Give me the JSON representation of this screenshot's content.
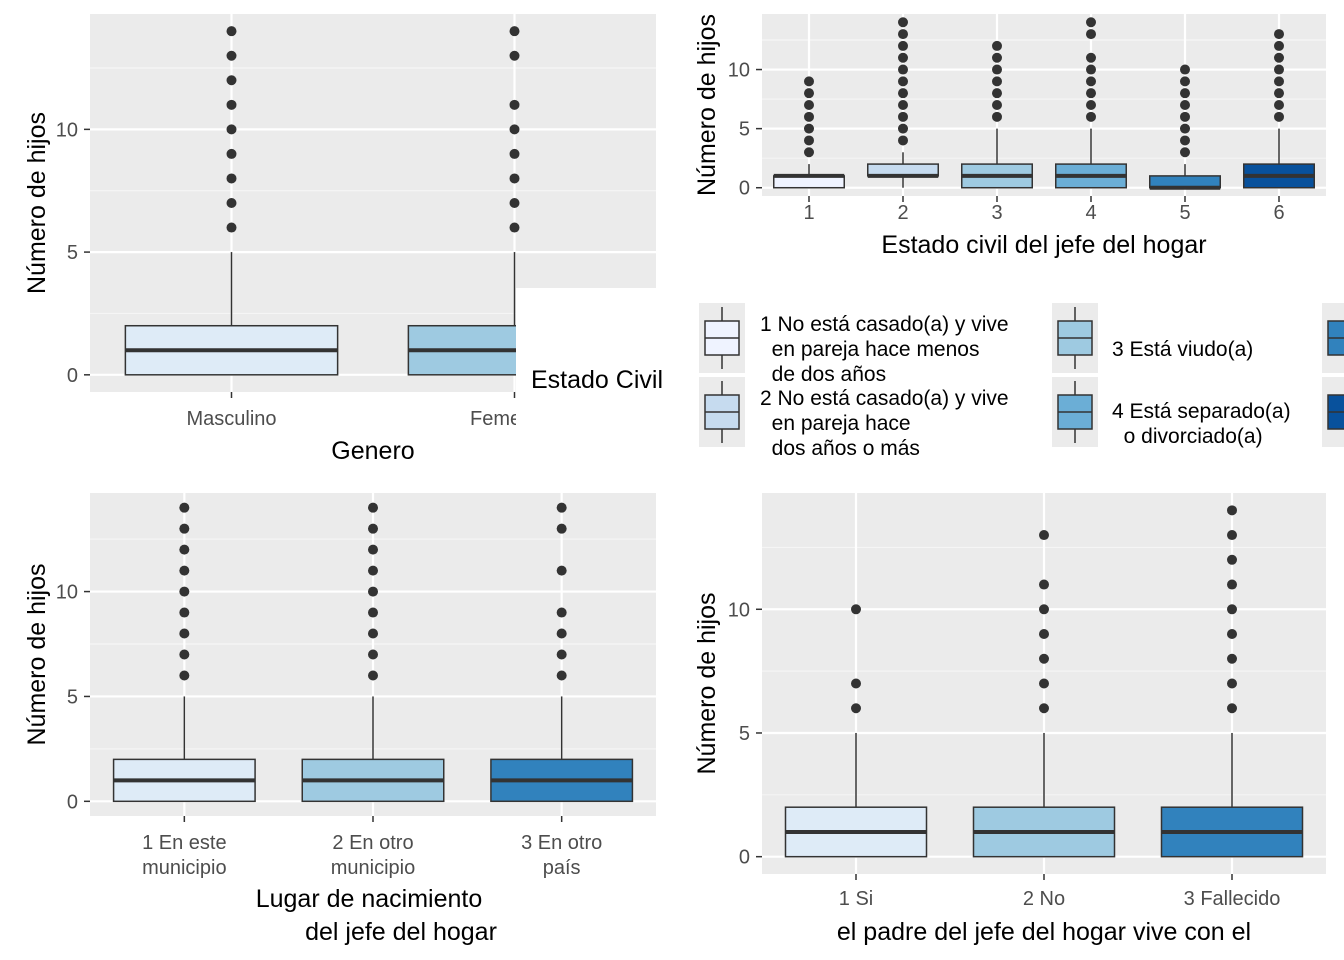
{
  "colors": {
    "panel_bg": "#ebebeb",
    "grid_major": "#ffffff",
    "outline": "#333333",
    "outlier": "#333333",
    "palette": [
      "#eff3ff",
      "#c6dbef",
      "#9ecae1",
      "#6baed6",
      "#3182bd",
      "#08519c"
    ]
  },
  "chart_data": [
    {
      "type": "boxplot",
      "xlabel": "Genero",
      "ylabel": "Número de hijos",
      "y_ticks": [
        0,
        5,
        10
      ],
      "ylim": [
        -0.7,
        14.7
      ],
      "grid": true,
      "categories": [
        "Masculino",
        "Femenino"
      ],
      "fills": [
        "#deebf7",
        "#9ecae1"
      ],
      "boxes": [
        {
          "category": "Masculino",
          "min": 0,
          "q1": 0,
          "median": 1,
          "q3": 2,
          "max": 5,
          "outliers": [
            6,
            7,
            8,
            9,
            10,
            11,
            12,
            13,
            14
          ]
        },
        {
          "category": "Femenino",
          "min": 0,
          "q1": 0,
          "median": 1,
          "q3": 2,
          "max": 5,
          "outliers": [
            6,
            7,
            8,
            9,
            10,
            11,
            13,
            14
          ]
        }
      ]
    },
    {
      "type": "boxplot",
      "xlabel": "Estado civil del jefe del hogar",
      "ylabel": "Número de hijos",
      "y_ticks": [
        0,
        5,
        10
      ],
      "ylim": [
        -0.7,
        14.7
      ],
      "grid": true,
      "categories": [
        "1",
        "2",
        "3",
        "4",
        "5",
        "6"
      ],
      "fills": [
        "#eff3ff",
        "#c6dbef",
        "#9ecae1",
        "#6baed6",
        "#3182bd",
        "#08519c"
      ],
      "boxes": [
        {
          "category": "1",
          "min": 0,
          "q1": 0,
          "median": 1,
          "q3": 1,
          "max": 2,
          "outliers": [
            3,
            4,
            5,
            6,
            7,
            8,
            9
          ]
        },
        {
          "category": "2",
          "min": 0,
          "q1": 1,
          "median": 1,
          "q3": 2,
          "max": 3,
          "outliers": [
            4,
            5,
            6,
            7,
            8,
            9,
            10,
            11,
            12,
            13,
            14
          ]
        },
        {
          "category": "3",
          "min": 0,
          "q1": 0,
          "median": 1,
          "q3": 2,
          "max": 5,
          "outliers": [
            6,
            7,
            8,
            9,
            10,
            11,
            12
          ]
        },
        {
          "category": "4",
          "min": 0,
          "q1": 0,
          "median": 1,
          "q3": 2,
          "max": 5,
          "outliers": [
            6,
            7,
            8,
            9,
            10,
            11,
            13,
            14
          ]
        },
        {
          "category": "5",
          "min": 0,
          "q1": 0,
          "median": 0,
          "q3": 1,
          "max": 2,
          "outliers": [
            3,
            4,
            5,
            6,
            7,
            8,
            9,
            10
          ]
        },
        {
          "category": "6",
          "min": 0,
          "q1": 0,
          "median": 1,
          "q3": 2,
          "max": 5,
          "outliers": [
            6,
            7,
            8,
            9,
            10,
            11,
            12,
            13
          ]
        }
      ]
    },
    {
      "type": "boxplot",
      "xlabel_lines": [
        "Lugar de nacimiento",
        "del jefe del hogar"
      ],
      "ylabel": "Número de hijos",
      "y_ticks": [
        0,
        5,
        10
      ],
      "ylim": [
        -0.7,
        14.7
      ],
      "grid": true,
      "categories": [
        [
          "1 En este",
          "municipio"
        ],
        [
          "2 En otro",
          "municipio"
        ],
        [
          "3 En otro",
          "país"
        ]
      ],
      "fills": [
        "#deebf7",
        "#9ecae1",
        "#3182bd"
      ],
      "boxes": [
        {
          "category": "1 En este municipio",
          "min": 0,
          "q1": 0,
          "median": 1,
          "q3": 2,
          "max": 5,
          "outliers": [
            6,
            7,
            8,
            9,
            10,
            11,
            12,
            13,
            14
          ]
        },
        {
          "category": "2 En otro municipio",
          "min": 0,
          "q1": 0,
          "median": 1,
          "q3": 2,
          "max": 5,
          "outliers": [
            6,
            7,
            8,
            9,
            10,
            11,
            12,
            13,
            14
          ]
        },
        {
          "category": "3 En otro país",
          "min": 0,
          "q1": 0,
          "median": 1,
          "q3": 2,
          "max": 5,
          "outliers": [
            6,
            7,
            8,
            9,
            11,
            13,
            14
          ]
        }
      ]
    },
    {
      "type": "boxplot",
      "xlabel": "el padre del jefe del hogar vive con el",
      "ylabel": "Número de hijos",
      "y_ticks": [
        0,
        5,
        10
      ],
      "ylim": [
        -0.7,
        14.7
      ],
      "grid": true,
      "categories": [
        "1 Si",
        "2 No",
        "3 Fallecido"
      ],
      "fills": [
        "#deebf7",
        "#9ecae1",
        "#3182bd"
      ],
      "boxes": [
        {
          "category": "1 Si",
          "min": 0,
          "q1": 0,
          "median": 1,
          "q3": 2,
          "max": 5,
          "outliers": [
            6,
            7,
            10
          ]
        },
        {
          "category": "2 No",
          "min": 0,
          "q1": 0,
          "median": 1,
          "q3": 2,
          "max": 5,
          "outliers": [
            6,
            7,
            8,
            9,
            10,
            11,
            13
          ]
        },
        {
          "category": "3 Fallecido",
          "min": 0,
          "q1": 0,
          "median": 1,
          "q3": 2,
          "max": 5,
          "outliers": [
            6,
            7,
            8,
            9,
            10,
            11,
            12,
            13,
            14
          ]
        }
      ]
    }
  ],
  "legend": {
    "title": "Estado Civil",
    "placement": "right of top-right panel",
    "items": [
      {
        "lines": [
          "1 No está casado(a) y vive",
          "  en pareja hace menos",
          "  de dos años"
        ],
        "color": "#eff3ff"
      },
      {
        "lines": [
          "2 No está casado(a) y vive",
          "  en pareja hace",
          "  dos años o más"
        ],
        "color": "#c6dbef"
      },
      {
        "lines": [
          "3 Está viudo(a)"
        ],
        "color": "#9ecae1"
      },
      {
        "lines": [
          "4 Está separado(a)",
          "  o divorciado(a)"
        ],
        "color": "#6baed6"
      },
      {
        "lines": [],
        "color": "#3182bd"
      },
      {
        "lines": [],
        "color": "#08519c"
      }
    ]
  }
}
